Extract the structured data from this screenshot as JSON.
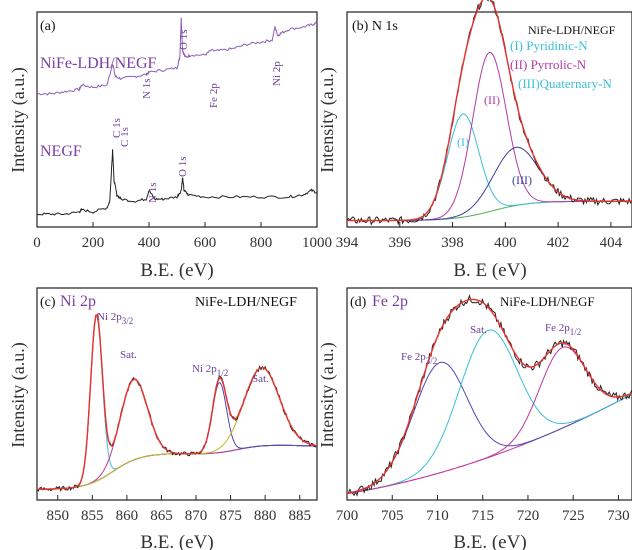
{
  "chart_data": [
    {
      "panel": "(a)",
      "type": "line",
      "xlabel": "B.E. (eV)",
      "ylabel": "Intensity (a.u.)",
      "xlim": [
        0,
        1000
      ],
      "xticks": [
        0,
        200,
        400,
        600,
        800,
        1000
      ],
      "series": [
        {
          "name": "NiFe-LDH/NEGF",
          "color": "#8a5cb5",
          "x": [
            0,
            50,
            100,
            150,
            160,
            200,
            250,
            270,
            280,
            300,
            350,
            390,
            400,
            450,
            500,
            510,
            515,
            520,
            530,
            550,
            600,
            620,
            650,
            700,
            750,
            800,
            840,
            850,
            860,
            870,
            900,
            950,
            980,
            1000
          ],
          "y": [
            0.62,
            0.62,
            0.63,
            0.64,
            0.66,
            0.65,
            0.66,
            0.76,
            0.7,
            0.69,
            0.7,
            0.71,
            0.72,
            0.73,
            0.74,
            0.79,
            0.97,
            0.82,
            0.79,
            0.8,
            0.8,
            0.82,
            0.82,
            0.83,
            0.85,
            0.86,
            0.87,
            0.93,
            0.89,
            0.9,
            0.92,
            0.93,
            0.94,
            0.95
          ]
        },
        {
          "name": "NEGF",
          "color": "#222222",
          "x": [
            0,
            50,
            100,
            150,
            160,
            200,
            250,
            260,
            270,
            275,
            285,
            300,
            350,
            390,
            400,
            420,
            450,
            500,
            515,
            520,
            525,
            540,
            600,
            700,
            800,
            900,
            950,
            980,
            1000
          ],
          "y": [
            0.06,
            0.06,
            0.06,
            0.07,
            0.08,
            0.07,
            0.09,
            0.12,
            0.36,
            0.22,
            0.15,
            0.13,
            0.12,
            0.13,
            0.17,
            0.13,
            0.13,
            0.14,
            0.17,
            0.23,
            0.17,
            0.15,
            0.14,
            0.14,
            0.14,
            0.14,
            0.15,
            0.17,
            0.16
          ]
        }
      ],
      "annotations": [
        {
          "text": "C 1s",
          "x": 270
        },
        {
          "text": "N 1s",
          "x": 395
        },
        {
          "text": "O 1s",
          "x": 520
        },
        {
          "text": "Fe 2p",
          "x": 620
        },
        {
          "text": "Ni 2p",
          "x": 850
        },
        {
          "text": "C 1s",
          "x": 272
        },
        {
          "text": "N 1s",
          "x": 398
        },
        {
          "text": "O 1s",
          "x": 525
        }
      ],
      "labels": [
        "NiFe-LDH/NEGF",
        "NEGF"
      ]
    },
    {
      "panel": "(b) N 1s",
      "type": "line",
      "xlabel": "B. E (eV)",
      "ylabel": "Intensity (a.u.)",
      "xlim": [
        394,
        404.8
      ],
      "xticks": [
        394,
        396,
        398,
        400,
        402,
        404
      ],
      "title": "NiFe-LDH/NEGF",
      "legend": [
        "(I) Pyridinic-N",
        "(II) Pyrrolic-N",
        "(III)Quaternary-N"
      ],
      "components": [
        {
          "name": "(I)",
          "label": "Pyridinic-N",
          "color": "#3bbfd8",
          "center": 398.4,
          "fwhm": 1.4,
          "height": 0.48
        },
        {
          "name": "(II)",
          "label": "Pyrrolic-N",
          "color": "#b23aa8",
          "center": 399.4,
          "fwhm": 1.5,
          "height": 0.74
        },
        {
          "name": "(III)",
          "label": "Quaternary-N",
          "color": "#3d3fa0",
          "center": 400.4,
          "fwhm": 2.0,
          "height": 0.27
        }
      ],
      "background": {
        "color": "#4caf50",
        "y_start": 0.03,
        "y_end": 0.12
      }
    },
    {
      "panel": "(c) Ni 2p",
      "type": "line",
      "xlabel": "B.E. (eV)",
      "ylabel": "Intensity (a.u.)",
      "xlim": [
        847,
        887.5
      ],
      "xticks": [
        850,
        855,
        860,
        865,
        870,
        875,
        880,
        885
      ],
      "title": "NiFe-LDH/NEGF",
      "components": [
        {
          "name": "Ni 2p3/2",
          "color": "#3bbfd8",
          "center": 855.6,
          "fwhm": 2.0,
          "height": 0.78
        },
        {
          "name": "Sat.",
          "color": "#c2389d",
          "center": 861.0,
          "fwhm": 4.6,
          "height": 0.38
        },
        {
          "name": "Ni 2p1/2",
          "color": "#4a4ab0",
          "center": 873.4,
          "fwhm": 2.4,
          "height": 0.33
        },
        {
          "name": "Sat.",
          "color": "#c9b820",
          "center": 879.5,
          "fwhm": 6.0,
          "height": 0.37
        }
      ],
      "annotations": [
        "Ni 2p3/2",
        "Sat.",
        "Ni 2p1/2",
        "Sat."
      ]
    },
    {
      "panel": "(d) Fe 2p",
      "type": "line",
      "xlabel": "B.E. (eV)",
      "ylabel": "Intensity (a.u.)",
      "xlim": [
        700,
        731.5
      ],
      "xticks": [
        700,
        705,
        710,
        715,
        720,
        725,
        730
      ],
      "title": "NiFe-LDH/NEGF",
      "components": [
        {
          "name": "Fe 2p3/2",
          "color": "#4a4ab0",
          "center": 710.3,
          "fwhm": 7.0,
          "height": 0.52
        },
        {
          "name": "Sat.",
          "color": "#3bbfd8",
          "center": 715.6,
          "fwhm": 7.5,
          "height": 0.6
        },
        {
          "name": "Fe 2p1/2",
          "color": "#c2389d",
          "center": 723.8,
          "fwhm": 6.0,
          "height": 0.38
        }
      ],
      "annotations": [
        "Fe 2p3/2",
        "Sat.",
        "Fe 2p1/2"
      ]
    }
  ],
  "labels": {
    "a": {
      "panel": "(a)",
      "xlabel": "B.E. (eV)",
      "ylabel": "Intensity (a.u.)",
      "top": "NiFe-LDH/NEGF",
      "bottom": "NEGF",
      "peaks_top": [
        "C 1s",
        "N 1s",
        "O 1s",
        "Fe 2p",
        "Ni 2p"
      ],
      "peaks_bottom": [
        "C 1s",
        "N 1s",
        "O 1s"
      ]
    },
    "b": {
      "panel": "(b) N 1s",
      "xlabel": "B. E (eV)",
      "ylabel": "Intensity (a.u.)",
      "title": "NiFe-LDH/NEGF",
      "leg1": "(I) Pyridinic-N",
      "leg2": "(II) Pyrrolic-N",
      "leg3": "(III)Quaternary-N",
      "c1": "(I)",
      "c2": "(II)",
      "c3": "(III)"
    },
    "c": {
      "panel_pre": "(c)",
      "panel_el": "Ni 2p",
      "xlabel": "B.E. (eV)",
      "ylabel": "Intensity (a.u.)",
      "title": "NiFe-LDH/NEGF",
      "p1": "Ni 2p",
      "p1s": "3/2",
      "sat1": "Sat.",
      "p2": "Ni 2p",
      "p2s": "1/2",
      "sat2": "Sat."
    },
    "d": {
      "panel_pre": "(d)",
      "panel_el": "Fe 2p",
      "xlabel": "B.E. (eV)",
      "ylabel": "Intensity (a.u.)",
      "title": "NiFe-LDH/NEGF",
      "p1": "Fe 2p",
      "p1s": "3/2",
      "sat": "Sat.",
      "p2": "Fe 2p",
      "p2s": "1/2"
    }
  }
}
